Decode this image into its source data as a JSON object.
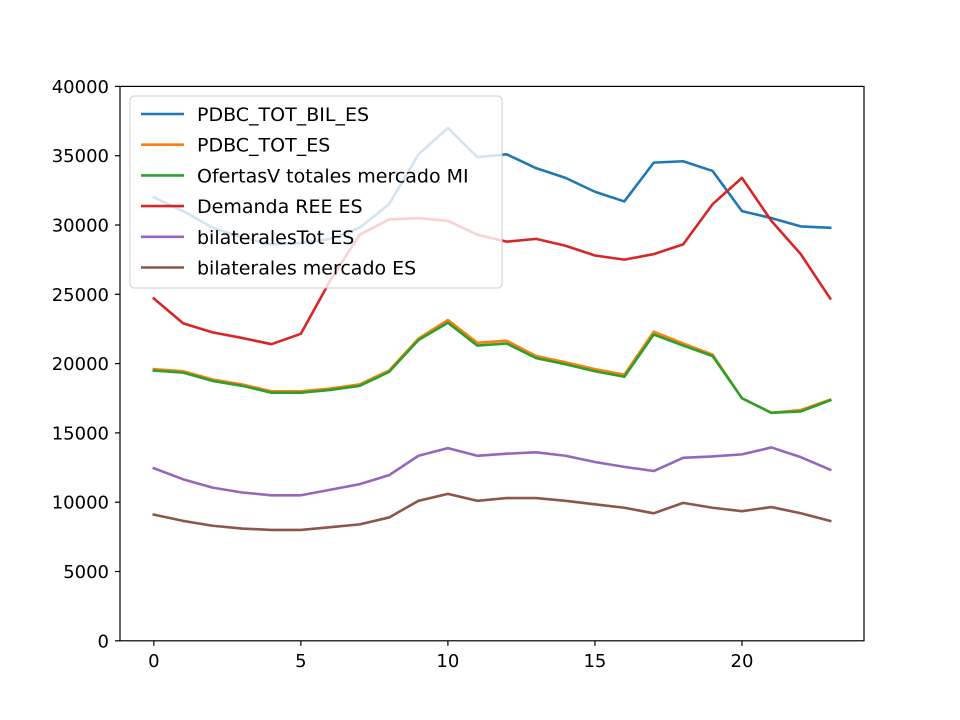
{
  "chart_data": {
    "type": "line",
    "title": "",
    "xlabel": "",
    "ylabel": "",
    "xlim": [
      -1.15,
      24.15
    ],
    "ylim": [
      0,
      40000
    ],
    "xticks": [
      0,
      5,
      10,
      15,
      20
    ],
    "yticks": [
      0,
      5000,
      10000,
      15000,
      20000,
      25000,
      30000,
      35000,
      40000
    ],
    "grid": false,
    "legend": "top-left",
    "x": [
      0,
      1,
      2,
      3,
      4,
      5,
      6,
      7,
      8,
      9,
      10,
      11,
      12,
      13,
      14,
      15,
      16,
      17,
      18,
      19,
      20,
      21,
      22,
      23
    ],
    "series": [
      {
        "name": "PDBC_TOT_BIL_ES",
        "color": "#1f77b4",
        "values": [
          32000,
          31000,
          29800,
          29100,
          28600,
          28700,
          29000,
          29800,
          31500,
          35100,
          37000,
          34900,
          35100,
          34100,
          33400,
          32400,
          31700,
          34500,
          34600,
          33900,
          31000,
          30500,
          29900,
          29800
        ]
      },
      {
        "name": "PDBC_TOT_ES",
        "color": "#ff7f0e",
        "values": [
          19600,
          19450,
          18850,
          18500,
          18000,
          18000,
          18200,
          18500,
          19500,
          21800,
          23150,
          21500,
          21650,
          20550,
          20100,
          19600,
          19200,
          22300,
          21450,
          20650,
          17500,
          16450,
          16650,
          17400
        ]
      },
      {
        "name": "OfertasV totales mercado MI",
        "color": "#2ca02c",
        "values": [
          19500,
          19350,
          18750,
          18400,
          17900,
          17900,
          18100,
          18400,
          19400,
          21700,
          22950,
          21300,
          21450,
          20400,
          19950,
          19450,
          19050,
          22100,
          21300,
          20550,
          17500,
          16450,
          16550,
          17350
        ]
      },
      {
        "name": "Demanda REE ES",
        "color": "#d62728",
        "values": [
          24700,
          22900,
          22250,
          21850,
          21400,
          22150,
          26000,
          29300,
          30400,
          30500,
          30300,
          29300,
          28800,
          29000,
          28500,
          27800,
          27500,
          27900,
          28600,
          31500,
          33400,
          30300,
          27900,
          24700
        ]
      },
      {
        "name": "bilateralesTot ES",
        "color": "#9467bd",
        "values": [
          12450,
          11650,
          11050,
          10700,
          10500,
          10500,
          10900,
          11300,
          11950,
          13350,
          13900,
          13350,
          13500,
          13600,
          13350,
          12900,
          12550,
          12250,
          13200,
          13300,
          13450,
          13950,
          13250,
          12350
        ]
      },
      {
        "name": "bilaterales mercado ES",
        "color": "#8c564b",
        "values": [
          9100,
          8650,
          8300,
          8100,
          8000,
          8000,
          8200,
          8400,
          8900,
          10100,
          10600,
          10100,
          10300,
          10300,
          10100,
          9850,
          9600,
          9200,
          9950,
          9600,
          9350,
          9650,
          9200,
          8650
        ]
      }
    ]
  }
}
